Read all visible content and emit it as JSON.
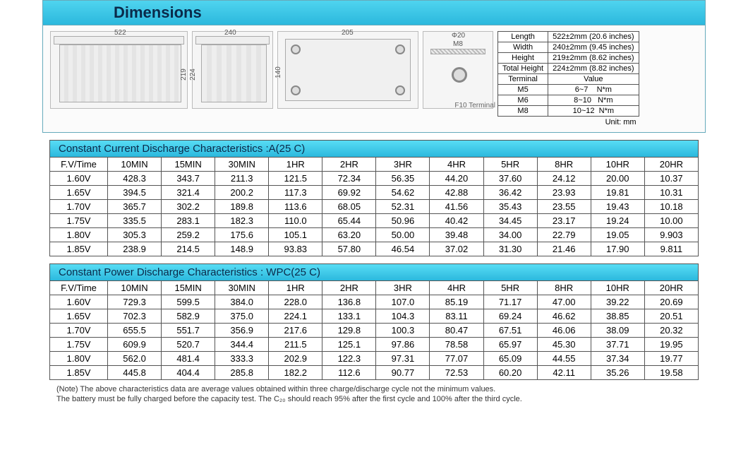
{
  "watermark": "WP",
  "dimensions_header": "Dimensions",
  "drawings": {
    "d1_width": "522",
    "d1_height": "219",
    "d2_width": "240",
    "d2_height": "224",
    "d3_width": "205",
    "d3_height": "140",
    "d4_top": "Φ20",
    "d4_m": "M8",
    "terminal_label": "F10 Terminal"
  },
  "dimspec": {
    "rows": [
      [
        "Length",
        "522±2mm (20.6 inches)"
      ],
      [
        "Width",
        "240±2mm (9.45 inches)"
      ],
      [
        "Height",
        "219±2mm (8.62 inches)"
      ],
      [
        "Total Height",
        "224±2mm (8.82 inches)"
      ]
    ],
    "terminal_header": [
      "Terminal",
      "Value"
    ],
    "terminal_rows": [
      [
        "M5",
        "6~7    N*m"
      ],
      [
        "M6",
        "8~10   N*m"
      ],
      [
        "M8",
        "10~12  N*m"
      ]
    ],
    "unit": "Unit: mm"
  },
  "table1": {
    "title": "Constant Current Discharge Characteristics :A(25 C)",
    "headers": [
      "F.V/Time",
      "10MIN",
      "15MIN",
      "30MIN",
      "1HR",
      "2HR",
      "3HR",
      "4HR",
      "5HR",
      "8HR",
      "10HR",
      "20HR"
    ],
    "rows": [
      [
        "1.60V",
        "428.3",
        "343.7",
        "211.3",
        "121.5",
        "72.34",
        "56.35",
        "44.20",
        "37.60",
        "24.12",
        "20.00",
        "10.37"
      ],
      [
        "1.65V",
        "394.5",
        "321.4",
        "200.2",
        "117.3",
        "69.92",
        "54.62",
        "42.88",
        "36.42",
        "23.93",
        "19.81",
        "10.31"
      ],
      [
        "1.70V",
        "365.7",
        "302.2",
        "189.8",
        "113.6",
        "68.05",
        "52.31",
        "41.56",
        "35.43",
        "23.55",
        "19.43",
        "10.18"
      ],
      [
        "1.75V",
        "335.5",
        "283.1",
        "182.3",
        "110.0",
        "65.44",
        "50.96",
        "40.42",
        "34.45",
        "23.17",
        "19.24",
        "10.00"
      ],
      [
        "1.80V",
        "305.3",
        "259.2",
        "175.6",
        "105.1",
        "63.20",
        "50.00",
        "39.48",
        "34.00",
        "22.79",
        "19.05",
        "9.903"
      ],
      [
        "1.85V",
        "238.9",
        "214.5",
        "148.9",
        "93.83",
        "57.80",
        "46.54",
        "37.02",
        "31.30",
        "21.46",
        "17.90",
        "9.811"
      ]
    ]
  },
  "table2": {
    "title": "Constant Power Discharge Characteristics : WPC(25 C)",
    "headers": [
      "F.V/Time",
      "10MIN",
      "15MIN",
      "30MIN",
      "1HR",
      "2HR",
      "3HR",
      "4HR",
      "5HR",
      "8HR",
      "10HR",
      "20HR"
    ],
    "rows": [
      [
        "1.60V",
        "729.3",
        "599.5",
        "384.0",
        "228.0",
        "136.8",
        "107.0",
        "85.19",
        "71.17",
        "47.00",
        "39.22",
        "20.69"
      ],
      [
        "1.65V",
        "702.3",
        "582.9",
        "375.0",
        "224.1",
        "133.1",
        "104.3",
        "83.11",
        "69.24",
        "46.62",
        "38.85",
        "20.51"
      ],
      [
        "1.70V",
        "655.5",
        "551.7",
        "356.9",
        "217.6",
        "129.8",
        "100.3",
        "80.47",
        "67.51",
        "46.06",
        "38.09",
        "20.32"
      ],
      [
        "1.75V",
        "609.9",
        "520.7",
        "344.4",
        "211.5",
        "125.1",
        "97.86",
        "78.58",
        "65.97",
        "45.30",
        "37.71",
        "19.95"
      ],
      [
        "1.80V",
        "562.0",
        "481.4",
        "333.3",
        "202.9",
        "122.3",
        "97.31",
        "77.07",
        "65.09",
        "44.55",
        "37.34",
        "19.77"
      ],
      [
        "1.85V",
        "445.8",
        "404.4",
        "285.8",
        "182.2",
        "112.6",
        "90.77",
        "72.53",
        "60.20",
        "42.11",
        "35.26",
        "19.58"
      ]
    ]
  },
  "footnote_1": "(Note) The above characteristics data are average values obtained within three charge/discharge cycle not the minimum values.",
  "footnote_2": "The battery must be fully charged before the capacity test.  The C₂₀ should reach 95% after the first cycle and 100% after the third cycle."
}
